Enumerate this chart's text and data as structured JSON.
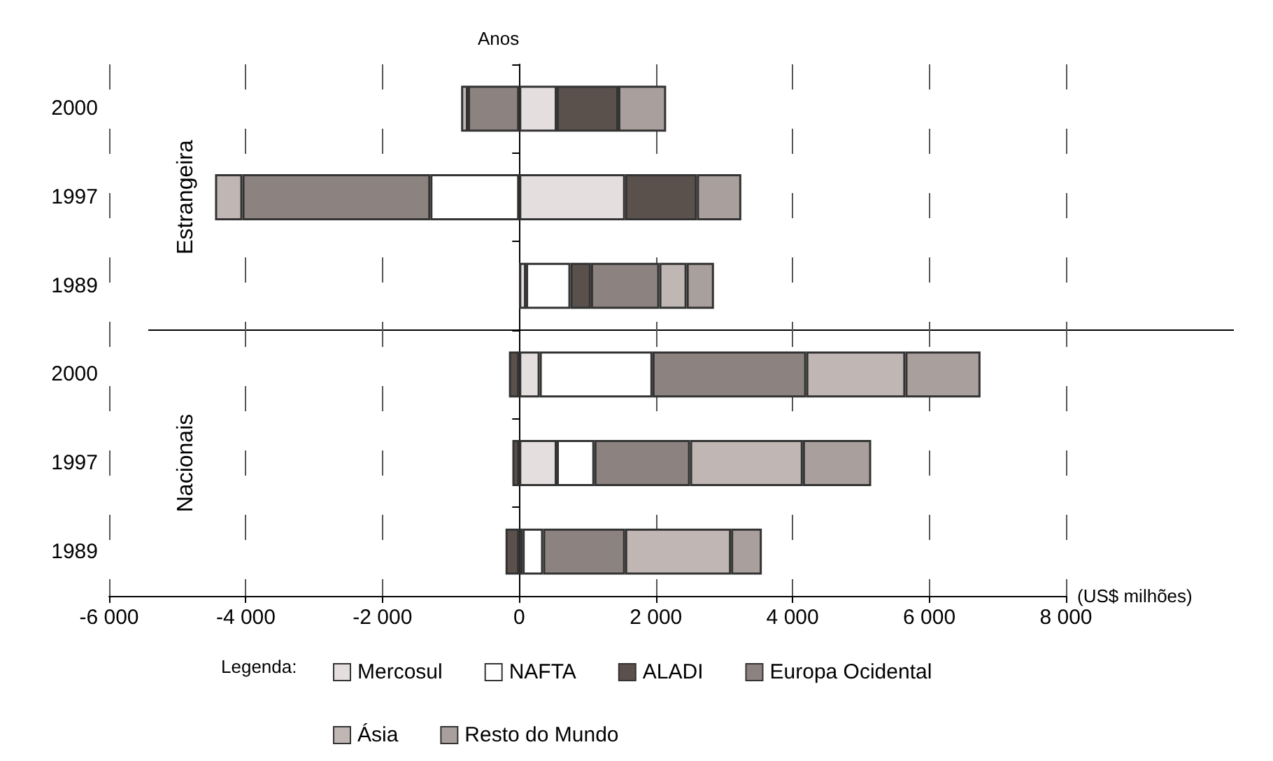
{
  "chart_data": {
    "type": "bar",
    "orientation": "horizontal",
    "stacked": true,
    "ylabel": "Anos",
    "xlabel": "(US$ milhões)",
    "legend_title": "Legenda:",
    "legend": "bottom",
    "grid": "x",
    "categories": [
      "2000",
      "1997",
      "1989",
      "2000",
      "1997",
      "1989"
    ],
    "annotations": [
      "Estrangeira",
      "Nacionais"
    ],
    "xlim": [
      -6000,
      8000
    ],
    "xticks": [
      {
        "value": -6000,
        "label": "-6 000"
      },
      {
        "value": -4000,
        "label": "-4 000"
      },
      {
        "value": -2000,
        "label": "-2 000"
      },
      0,
      {
        "value": 2000,
        "label": "2 000"
      },
      {
        "value": 4000,
        "label": "4 000"
      },
      {
        "value": 6000,
        "label": "6 000"
      },
      {
        "value": 8000,
        "label": "8 000"
      }
    ],
    "series": [
      {
        "name": "Mercosul",
        "color": "#e4dfde",
        "values": [
          550,
          1550,
          100,
          300,
          550,
          50
        ]
      },
      {
        "name": "NAFTA",
        "color": "#ffffff",
        "values": [
          null,
          -1300,
          650,
          1650,
          550,
          300
        ]
      },
      {
        "name": "ALADI",
        "color": "#5a504c",
        "values": [
          900,
          1050,
          300,
          -150,
          -100,
          -200
        ]
      },
      {
        "name": "Europa Ocidental",
        "color": "#8c8380",
        "values": [
          -750,
          -2750,
          1000,
          2250,
          1400,
          1200
        ]
      },
      {
        "name": "Ásia",
        "color": "#c0b6b3",
        "values": [
          -100,
          -400,
          400,
          1450,
          1650,
          1550
        ]
      },
      {
        "name": "Resto do Mundo",
        "color": "#a9a09d",
        "values": [
          700,
          650,
          400,
          1100,
          1000,
          450
        ]
      }
    ]
  }
}
